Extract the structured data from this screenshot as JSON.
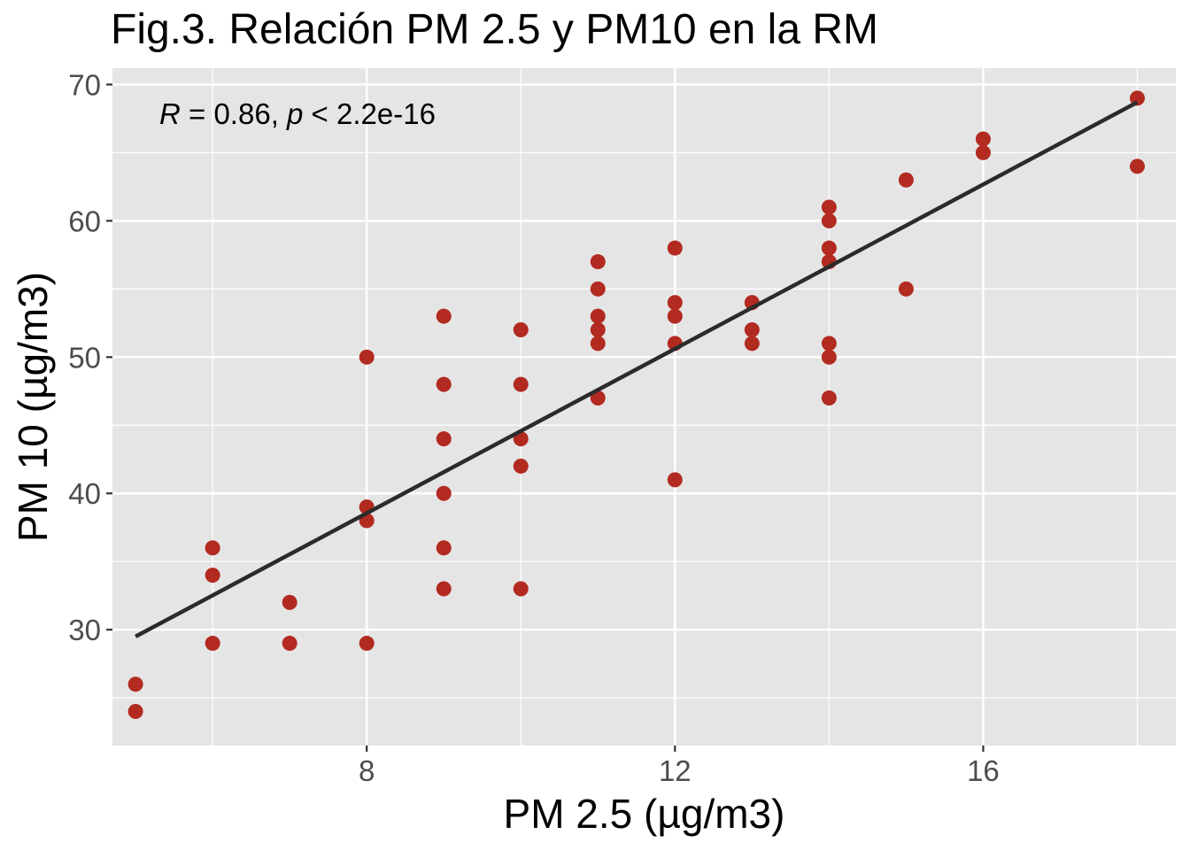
{
  "chart_data": {
    "type": "scatter",
    "title": "Fig.3. Relación PM 2.5 y PM10 en la RM",
    "xlabel": "PM 2.5 (µg/m3)",
    "ylabel": "PM 10 (µg/m3)",
    "xlim": [
      4.7,
      18.5
    ],
    "ylim": [
      21.5,
      71.2
    ],
    "xticks": [
      8,
      12,
      16
    ],
    "yticks": [
      30,
      40,
      50,
      60,
      70
    ],
    "grid": true,
    "annotation": {
      "r_label": "R",
      "r_value": "0.86",
      "p_label": "p",
      "p_value": "2.2e-16"
    },
    "colors": {
      "points": "#b22a20",
      "line": "#2b2b2b",
      "panel": "#e5e5e5",
      "grid": "#ffffff"
    },
    "points": [
      [
        5,
        26
      ],
      [
        5,
        24
      ],
      [
        6,
        36
      ],
      [
        6,
        34
      ],
      [
        6,
        29
      ],
      [
        7,
        32
      ],
      [
        7,
        29
      ],
      [
        8,
        50
      ],
      [
        8,
        39
      ],
      [
        8,
        38
      ],
      [
        8,
        29
      ],
      [
        9,
        53
      ],
      [
        9,
        48
      ],
      [
        9,
        44
      ],
      [
        9,
        40
      ],
      [
        9,
        36
      ],
      [
        9,
        33
      ],
      [
        10,
        52
      ],
      [
        10,
        48
      ],
      [
        10,
        44
      ],
      [
        10,
        42
      ],
      [
        10,
        33
      ],
      [
        11,
        57
      ],
      [
        11,
        55
      ],
      [
        11,
        53
      ],
      [
        11,
        52
      ],
      [
        11,
        51
      ],
      [
        11,
        47
      ],
      [
        12,
        58
      ],
      [
        12,
        54
      ],
      [
        12,
        53
      ],
      [
        12,
        51
      ],
      [
        12,
        41
      ],
      [
        13,
        54
      ],
      [
        13,
        52
      ],
      [
        13,
        51
      ],
      [
        14,
        61
      ],
      [
        14,
        60
      ],
      [
        14,
        58
      ],
      [
        14,
        57
      ],
      [
        14,
        51
      ],
      [
        14,
        50
      ],
      [
        14,
        47
      ],
      [
        15,
        63
      ],
      [
        15,
        55
      ],
      [
        16,
        66
      ],
      [
        16,
        65
      ],
      [
        18,
        69
      ],
      [
        18,
        64
      ]
    ],
    "regression_line": [
      [
        5,
        29.5
      ],
      [
        18,
        68.7
      ]
    ]
  }
}
